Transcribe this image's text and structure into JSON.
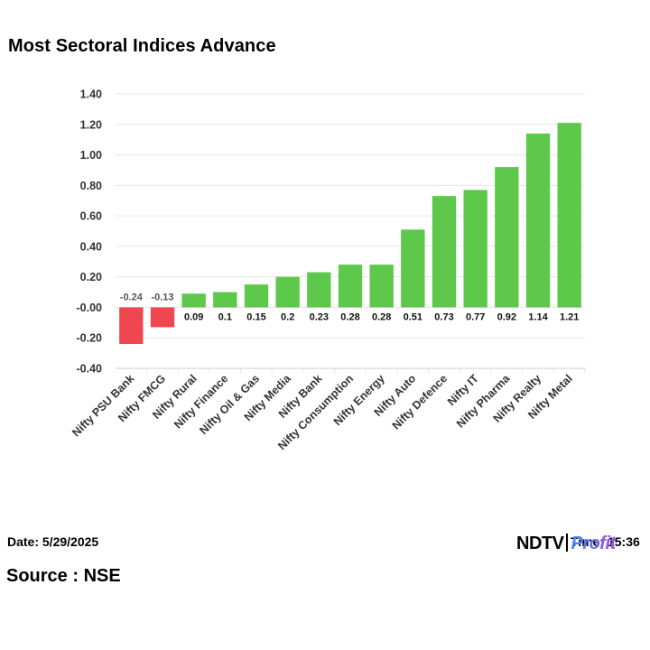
{
  "chart_data": {
    "type": "bar",
    "title": "Most Sectoral Indices Advance",
    "categories": [
      "Nifty PSU Bank",
      "Nifty FMCG",
      "Nifty Rural",
      "Nifty Finance",
      "Nifty Oil & Gas",
      "Nifty Media",
      "Nifty Bank",
      "Nifty Consumption",
      "Nifty Energy",
      "Nifty Auto",
      "Nifty Defence",
      "Nifty IT",
      "Nifty Pharma",
      "Nifty Realty",
      "Nifty Metal"
    ],
    "values": [
      -0.24,
      -0.13,
      0.09,
      0.1,
      0.15,
      0.2,
      0.23,
      0.28,
      0.28,
      0.51,
      0.73,
      0.77,
      0.92,
      1.14,
      1.21
    ],
    "value_labels": [
      "-0.24",
      "-0.13",
      "0.09",
      "0.1",
      "0.15",
      "0.2",
      "0.23",
      "0.28",
      "0.28",
      "0.51",
      "0.73",
      "0.77",
      "0.92",
      "1.14",
      "1.21"
    ],
    "ylim": [
      -0.4,
      1.4
    ],
    "yticks": [
      "-0.40",
      "-0.20",
      "-0.00",
      "0.20",
      "0.40",
      "0.60",
      "0.80",
      "1.00",
      "1.20",
      "1.40"
    ],
    "ytick_values": [
      -0.4,
      -0.2,
      0,
      0.2,
      0.4,
      0.6,
      0.8,
      1.0,
      1.2,
      1.4
    ],
    "xlabel": "",
    "ylabel": "",
    "grid": true,
    "colors": {
      "positive": "#5ec84a",
      "negative": "#f0464f",
      "grid": "#e6e6e6",
      "text": "#333333"
    }
  },
  "footer": {
    "date": "Date: 5/29/2025",
    "time": "Time: 15:36",
    "source": "Source : NSE",
    "logo_ndtv": "NDTV",
    "logo_profit": "Profit"
  }
}
